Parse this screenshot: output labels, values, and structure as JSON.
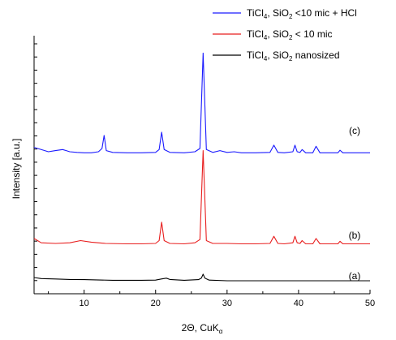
{
  "chart_data": {
    "type": "line",
    "xlabel": "2Θ, CuK",
    "xlabel_sub": "α",
    "ylabel": "Intensity [a.u.]",
    "xlim": [
      3,
      50
    ],
    "xticks": [
      10,
      20,
      30,
      40,
      50
    ],
    "grid": false,
    "legend_position": "top-right",
    "series": [
      {
        "name": "TiCl4, SiO2 <10 mic + HCl",
        "legend_parts": [
          "TiCl",
          "4",
          ", SiO",
          "2",
          " <10 mic + HCl"
        ],
        "curve_label": "(c)",
        "color": "#1a1aff",
        "baseline": 6.2,
        "x": [
          3,
          4.5,
          5,
          6,
          7,
          7.5,
          8,
          9,
          10,
          11,
          12,
          12.5,
          12.8,
          13.1,
          14,
          16,
          18,
          20,
          20.5,
          20.85,
          21.2,
          22,
          24,
          25.5,
          26.2,
          26.65,
          27.1,
          28,
          29,
          30,
          31,
          32,
          34,
          36,
          36.55,
          37.1,
          38,
          39.2,
          39.5,
          39.8,
          40.2,
          40.5,
          41,
          42,
          42.45,
          43,
          44,
          45.5,
          45.8,
          46.2,
          48,
          50
        ],
        "y": [
          6.45,
          6.3,
          6.25,
          6.3,
          6.35,
          6.3,
          6.25,
          6.22,
          6.2,
          6.2,
          6.25,
          6.4,
          7.0,
          6.3,
          6.22,
          6.2,
          6.2,
          6.22,
          6.35,
          7.15,
          6.35,
          6.22,
          6.2,
          6.25,
          6.4,
          10.8,
          6.35,
          6.22,
          6.3,
          6.22,
          6.25,
          6.2,
          6.2,
          6.22,
          6.55,
          6.22,
          6.2,
          6.25,
          6.55,
          6.25,
          6.22,
          6.35,
          6.2,
          6.2,
          6.5,
          6.2,
          6.2,
          6.2,
          6.32,
          6.2,
          6.2,
          6.2
        ]
      },
      {
        "name": "TiCl4, SiO2 < 10 mic",
        "legend_parts": [
          "TiCl",
          "4",
          ", SiO",
          "2",
          " < 10 mic"
        ],
        "curve_label": "(b)",
        "color": "#e81e1e",
        "baseline": 2.0,
        "x": [
          3,
          4,
          6,
          8,
          9.5,
          11,
          13,
          16,
          18,
          20,
          20.5,
          20.85,
          21.2,
          22,
          24,
          25.5,
          26.2,
          26.65,
          27.1,
          28,
          30,
          32,
          34,
          36,
          36.55,
          37.1,
          38,
          39.2,
          39.5,
          39.8,
          40.2,
          40.5,
          41,
          42,
          42.45,
          43,
          44,
          45.5,
          45.8,
          46.2,
          48,
          50
        ],
        "y": [
          2.25,
          2.05,
          2.02,
          2.05,
          2.15,
          2.08,
          2.02,
          2.0,
          2.0,
          2.02,
          2.15,
          3.0,
          2.15,
          2.02,
          2.0,
          2.05,
          2.2,
          6.3,
          2.15,
          2.02,
          2.02,
          2.0,
          2.0,
          2.02,
          2.35,
          2.02,
          2.0,
          2.05,
          2.35,
          2.05,
          2.02,
          2.15,
          2.0,
          2.0,
          2.25,
          2.0,
          2.0,
          2.0,
          2.12,
          2.0,
          2.0,
          2.0
        ]
      },
      {
        "name": "TiCl4, SiO2 nanosized",
        "legend_parts": [
          "TiCl",
          "4",
          ", SiO",
          "2",
          " nanosized"
        ],
        "curve_label": "(a)",
        "color": "#000000",
        "baseline": 0.3,
        "x": [
          3,
          4,
          6,
          8,
          10,
          14,
          18,
          20,
          20.8,
          21.5,
          22,
          24,
          26,
          26.4,
          26.65,
          26.9,
          27.5,
          30,
          35,
          40,
          45,
          50
        ],
        "y": [
          0.45,
          0.4,
          0.38,
          0.36,
          0.35,
          0.32,
          0.32,
          0.33,
          0.38,
          0.42,
          0.36,
          0.32,
          0.35,
          0.42,
          0.6,
          0.42,
          0.33,
          0.3,
          0.3,
          0.3,
          0.3,
          0.3
        ]
      }
    ]
  }
}
